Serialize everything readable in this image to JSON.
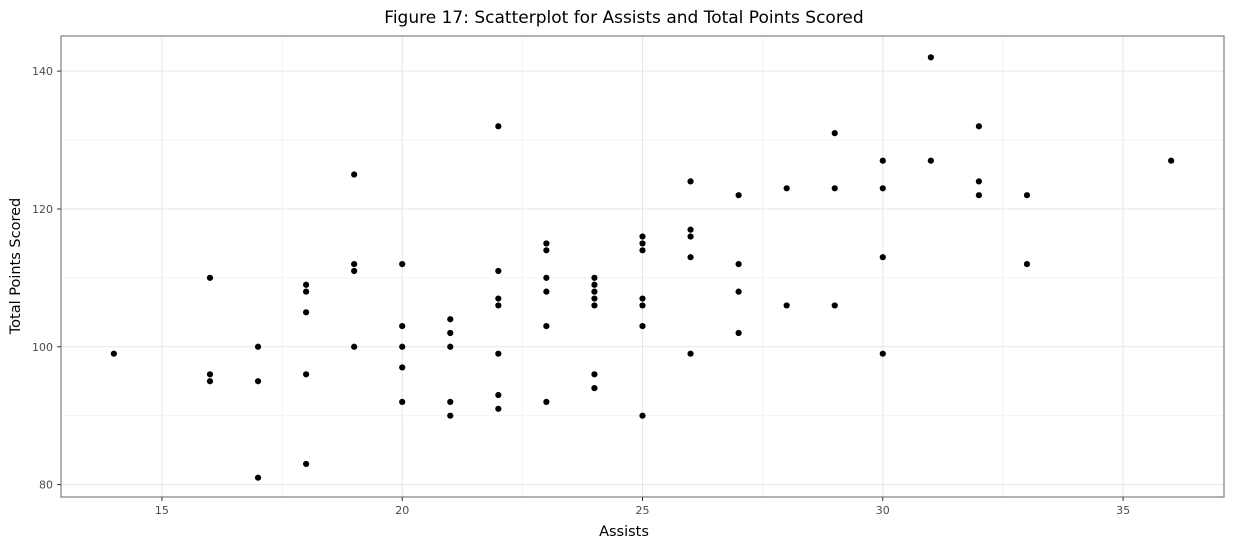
{
  "chart_data": {
    "type": "scatter",
    "title": "Figure 17: Scatterplot for Assists and Total Points Scored",
    "xlabel": "Assists",
    "ylabel": "Total Points Scored",
    "xlim": [
      12.9,
      37.1
    ],
    "ylim": [
      78.2,
      145.1
    ],
    "x_ticks": [
      15,
      20,
      25,
      30,
      35
    ],
    "y_ticks": [
      80,
      100,
      120,
      140
    ],
    "grid": true,
    "point_color": "#000000",
    "points": [
      {
        "x": 14,
        "y": 99
      },
      {
        "x": 16,
        "y": 110
      },
      {
        "x": 16,
        "y": 96
      },
      {
        "x": 16,
        "y": 95
      },
      {
        "x": 17,
        "y": 100
      },
      {
        "x": 17,
        "y": 95
      },
      {
        "x": 17,
        "y": 81
      },
      {
        "x": 18,
        "y": 109
      },
      {
        "x": 18,
        "y": 108
      },
      {
        "x": 18,
        "y": 105
      },
      {
        "x": 18,
        "y": 96
      },
      {
        "x": 18,
        "y": 83
      },
      {
        "x": 19,
        "y": 125
      },
      {
        "x": 19,
        "y": 112
      },
      {
        "x": 19,
        "y": 111
      },
      {
        "x": 19,
        "y": 100
      },
      {
        "x": 20,
        "y": 112
      },
      {
        "x": 20,
        "y": 103
      },
      {
        "x": 20,
        "y": 100
      },
      {
        "x": 20,
        "y": 97
      },
      {
        "x": 20,
        "y": 92
      },
      {
        "x": 21,
        "y": 104
      },
      {
        "x": 21,
        "y": 102
      },
      {
        "x": 21,
        "y": 100
      },
      {
        "x": 21,
        "y": 92
      },
      {
        "x": 21,
        "y": 90
      },
      {
        "x": 22,
        "y": 132
      },
      {
        "x": 22,
        "y": 111
      },
      {
        "x": 22,
        "y": 107
      },
      {
        "x": 22,
        "y": 106
      },
      {
        "x": 22,
        "y": 99
      },
      {
        "x": 22,
        "y": 93
      },
      {
        "x": 22,
        "y": 91
      },
      {
        "x": 23,
        "y": 115
      },
      {
        "x": 23,
        "y": 114
      },
      {
        "x": 23,
        "y": 110
      },
      {
        "x": 23,
        "y": 108
      },
      {
        "x": 23,
        "y": 103
      },
      {
        "x": 23,
        "y": 92
      },
      {
        "x": 24,
        "y": 110
      },
      {
        "x": 24,
        "y": 109
      },
      {
        "x": 24,
        "y": 108
      },
      {
        "x": 24,
        "y": 107
      },
      {
        "x": 24,
        "y": 106
      },
      {
        "x": 24,
        "y": 96
      },
      {
        "x": 24,
        "y": 94
      },
      {
        "x": 25,
        "y": 116
      },
      {
        "x": 25,
        "y": 115
      },
      {
        "x": 25,
        "y": 114
      },
      {
        "x": 25,
        "y": 107
      },
      {
        "x": 25,
        "y": 106
      },
      {
        "x": 25,
        "y": 103
      },
      {
        "x": 25,
        "y": 90
      },
      {
        "x": 26,
        "y": 124
      },
      {
        "x": 26,
        "y": 117
      },
      {
        "x": 26,
        "y": 116
      },
      {
        "x": 26,
        "y": 113
      },
      {
        "x": 26,
        "y": 99
      },
      {
        "x": 27,
        "y": 122
      },
      {
        "x": 27,
        "y": 112
      },
      {
        "x": 27,
        "y": 108
      },
      {
        "x": 27,
        "y": 102
      },
      {
        "x": 28,
        "y": 123
      },
      {
        "x": 28,
        "y": 106
      },
      {
        "x": 29,
        "y": 131
      },
      {
        "x": 29,
        "y": 123
      },
      {
        "x": 29,
        "y": 106
      },
      {
        "x": 30,
        "y": 127
      },
      {
        "x": 30,
        "y": 123
      },
      {
        "x": 30,
        "y": 113
      },
      {
        "x": 30,
        "y": 99
      },
      {
        "x": 31,
        "y": 142
      },
      {
        "x": 31,
        "y": 127
      },
      {
        "x": 32,
        "y": 132
      },
      {
        "x": 32,
        "y": 124
      },
      {
        "x": 32,
        "y": 122
      },
      {
        "x": 33,
        "y": 122
      },
      {
        "x": 33,
        "y": 112
      },
      {
        "x": 36,
        "y": 127
      }
    ]
  }
}
